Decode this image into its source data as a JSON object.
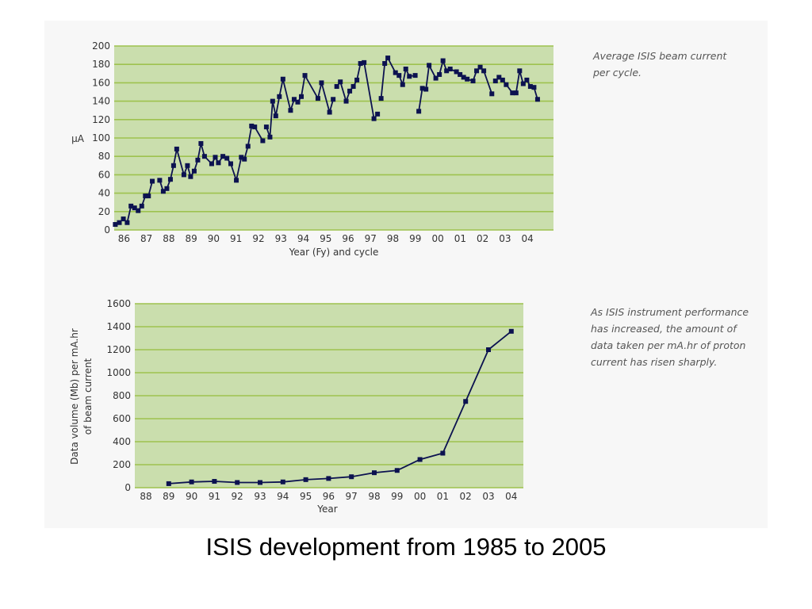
{
  "title": "ISIS development from 1985 to 2005",
  "colors": {
    "plot_bg": "#cadead",
    "grid": "#9ec24f",
    "line": "#0c1250",
    "marker": "#0c1250",
    "panel_bg": "#f7f7f7",
    "note_text": "#555555"
  },
  "chart_data": [
    {
      "type": "line",
      "ylabel": "µA",
      "xlabel": "Year (Fy) and cycle",
      "annotation": "Average ISIS beam current per cycle.",
      "ylim": [
        0,
        200
      ],
      "xlim": [
        85.35,
        104.95
      ],
      "yticks": [
        "0",
        "20",
        "40",
        "60",
        "80",
        "100",
        "120",
        "140",
        "160",
        "180",
        "200"
      ],
      "xticks": [
        "86",
        "87",
        "88",
        "89",
        "90",
        "91",
        "92",
        "93",
        "94",
        "95",
        "96",
        "97",
        "98",
        "99",
        "00",
        "01",
        "02",
        "03",
        "04"
      ],
      "grid": true,
      "series": [
        {
          "points": [
            [
              85.4,
              6
            ],
            [
              85.58,
              8
            ],
            [
              85.76,
              12
            ],
            [
              85.93,
              8
            ],
            [
              86.1,
              26
            ],
            [
              86.26,
              24
            ],
            [
              86.42,
              21
            ],
            [
              86.58,
              26
            ],
            [
              86.74,
              37
            ],
            [
              86.88,
              37
            ],
            [
              87.05,
              53
            ],
            [
              87.38,
              54
            ],
            [
              87.54,
              42
            ],
            [
              87.7,
              45
            ],
            [
              87.86,
              55
            ],
            [
              88.0,
              70
            ],
            [
              88.14,
              88
            ],
            [
              88.46,
              60
            ],
            [
              88.62,
              70
            ],
            [
              88.76,
              58
            ],
            [
              88.92,
              64
            ],
            [
              89.08,
              76
            ],
            [
              89.22,
              94
            ],
            [
              89.38,
              80
            ],
            [
              89.7,
              72
            ],
            [
              89.86,
              79
            ],
            [
              90.0,
              73
            ],
            [
              90.2,
              80
            ],
            [
              90.38,
              78
            ],
            [
              90.55,
              72
            ],
            [
              90.8,
              54
            ],
            [
              91.02,
              79
            ],
            [
              91.16,
              77
            ],
            [
              91.32,
              91
            ],
            [
              91.48,
              113
            ],
            [
              91.62,
              112
            ],
            [
              91.98,
              97
            ],
            [
              92.14,
              112
            ],
            [
              92.3,
              101
            ],
            [
              92.42,
              140
            ],
            [
              92.56,
              124
            ],
            [
              92.72,
              145
            ],
            [
              92.88,
              164
            ],
            [
              93.22,
              130
            ],
            [
              93.38,
              142
            ],
            [
              93.54,
              139
            ],
            [
              93.7,
              145
            ],
            [
              93.86,
              168
            ],
            [
              94.44,
              143
            ],
            [
              94.6,
              160
            ],
            [
              94.96,
              128
            ],
            [
              95.12,
              142
            ],
            [
              95.28,
              156
            ],
            [
              95.44,
              161
            ],
            [
              95.7,
              140
            ],
            [
              95.86,
              151
            ],
            [
              96.02,
              156
            ],
            [
              96.18,
              163
            ],
            [
              96.34,
              181
            ],
            [
              96.5,
              182
            ],
            [
              96.94,
              121
            ],
            [
              97.1,
              126
            ],
            [
              97.26,
              143
            ],
            [
              97.42,
              181
            ],
            [
              97.56,
              187
            ],
            [
              97.9,
              171
            ],
            [
              98.06,
              168
            ],
            [
              98.22,
              158
            ],
            [
              98.36,
              175
            ],
            [
              98.52,
              167
            ],
            [
              98.78,
              168
            ],
            [
              98.94,
              129
            ],
            [
              99.1,
              154
            ],
            [
              99.26,
              153
            ],
            [
              99.4,
              179
            ],
            [
              99.7,
              165
            ],
            [
              99.86,
              169
            ],
            [
              100.02,
              184
            ],
            [
              100.18,
              173
            ],
            [
              100.34,
              175
            ],
            [
              100.62,
              172
            ],
            [
              100.78,
              169
            ],
            [
              100.94,
              166
            ],
            [
              101.1,
              164
            ],
            [
              101.36,
              162
            ],
            [
              101.52,
              173
            ],
            [
              101.68,
              177
            ],
            [
              101.84,
              173
            ],
            [
              102.2,
              148
            ],
            [
              102.36,
              162
            ],
            [
              102.52,
              166
            ],
            [
              102.68,
              163
            ],
            [
              102.84,
              158
            ],
            [
              103.12,
              149
            ],
            [
              103.28,
              149
            ],
            [
              103.44,
              173
            ],
            [
              103.6,
              159
            ],
            [
              103.76,
              163
            ],
            [
              103.92,
              156
            ],
            [
              104.08,
              155
            ],
            [
              104.24,
              142
            ]
          ],
          "segments": [
            [
              0,
              10
            ],
            [
              11,
              36
            ],
            [
              37,
              51
            ],
            [
              52,
              61
            ],
            [
              62,
              70
            ],
            [
              71,
              88
            ],
            [
              89,
              100
            ]
          ]
        }
      ]
    },
    {
      "type": "line",
      "ylabel": "Data volume (Mb) per mA.hr of beam current",
      "xlabel": "Year",
      "annotation": "As ISIS instrument performance has increased, the amount of data taken per mA.hr of proton current has risen sharply.",
      "ylim": [
        0,
        1600
      ],
      "yticks": [
        "0",
        "200",
        "400",
        "600",
        "800",
        "1000",
        "1200",
        "1400",
        "1600"
      ],
      "categories": [
        "88",
        "89",
        "90",
        "91",
        "92",
        "93",
        "94",
        "95",
        "96",
        "97",
        "98",
        "99",
        "00",
        "01",
        "02",
        "03",
        "04"
      ],
      "grid": true,
      "series": [
        {
          "values": [
            null,
            35,
            50,
            55,
            45,
            45,
            50,
            70,
            80,
            95,
            130,
            150,
            245,
            300,
            750,
            1200,
            1360
          ]
        }
      ]
    }
  ]
}
